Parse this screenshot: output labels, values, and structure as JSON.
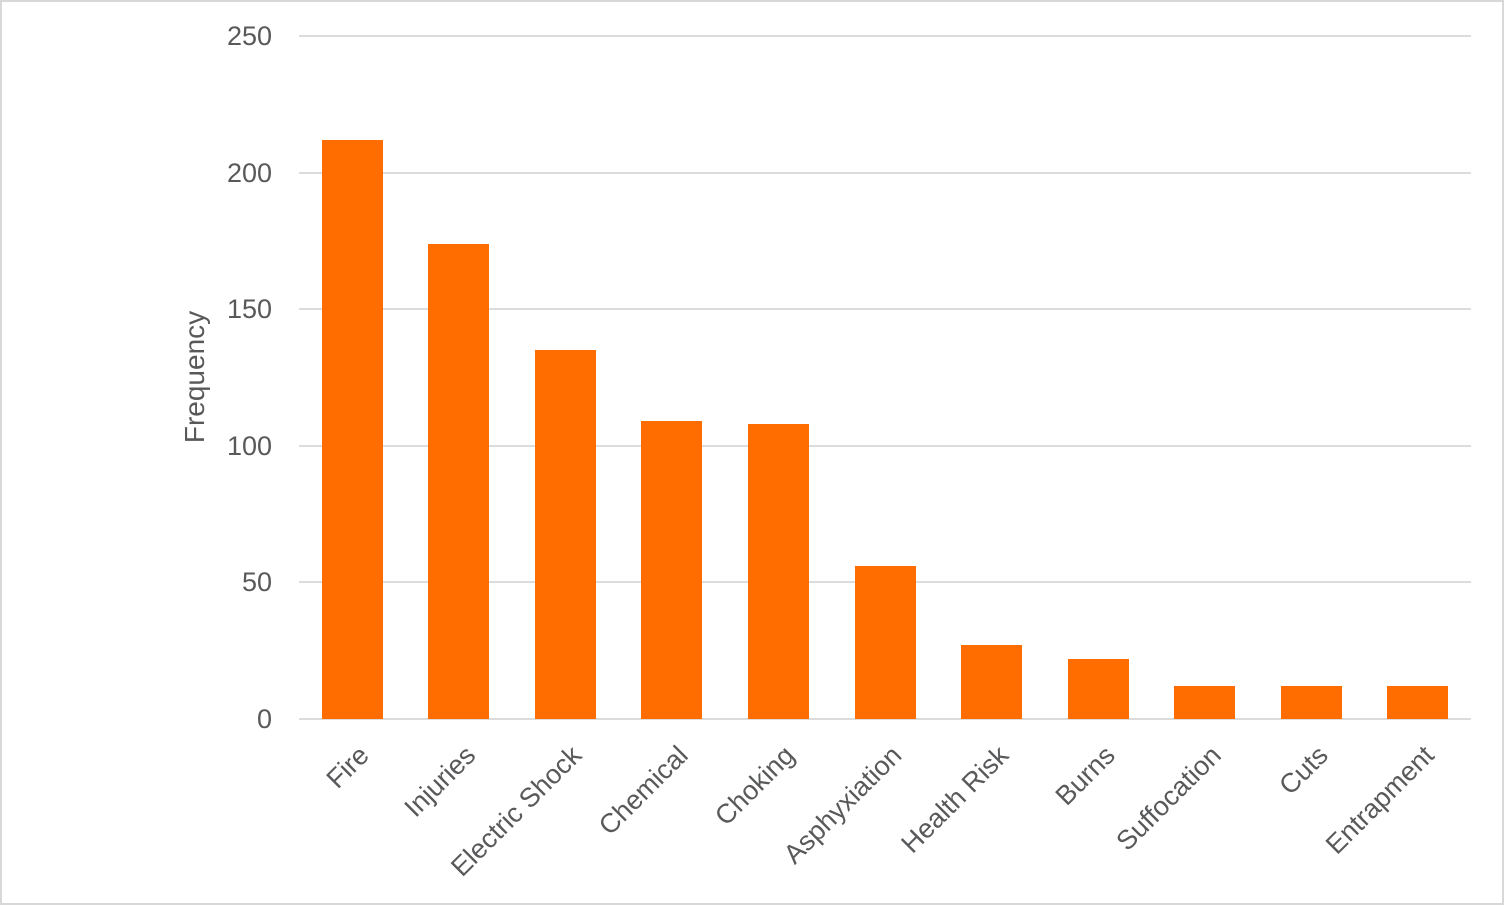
{
  "chart_data": {
    "type": "bar",
    "title": "",
    "xlabel": "",
    "ylabel": "Frequency",
    "categories": [
      "Fire",
      "Injuries",
      "Electric Shock",
      "Chemical",
      "Choking",
      "Asphyxiation",
      "Health Risk",
      "Burns",
      "Suffocation",
      "Cuts",
      "Entrapment"
    ],
    "values": [
      212,
      174,
      135,
      109,
      108,
      56,
      27,
      22,
      12,
      12,
      12
    ],
    "ylim": [
      0,
      250
    ],
    "yticks": [
      0,
      50,
      100,
      150,
      200,
      250
    ],
    "grid": true,
    "legend_position": "none",
    "bar_color": "#FF6D01"
  },
  "colors": {
    "bar": "#FF6D01",
    "gridline": "#DCDCDC",
    "axis_text": "#58595B",
    "frame_border": "#D8D8D8",
    "background": "#FFFFFF"
  }
}
